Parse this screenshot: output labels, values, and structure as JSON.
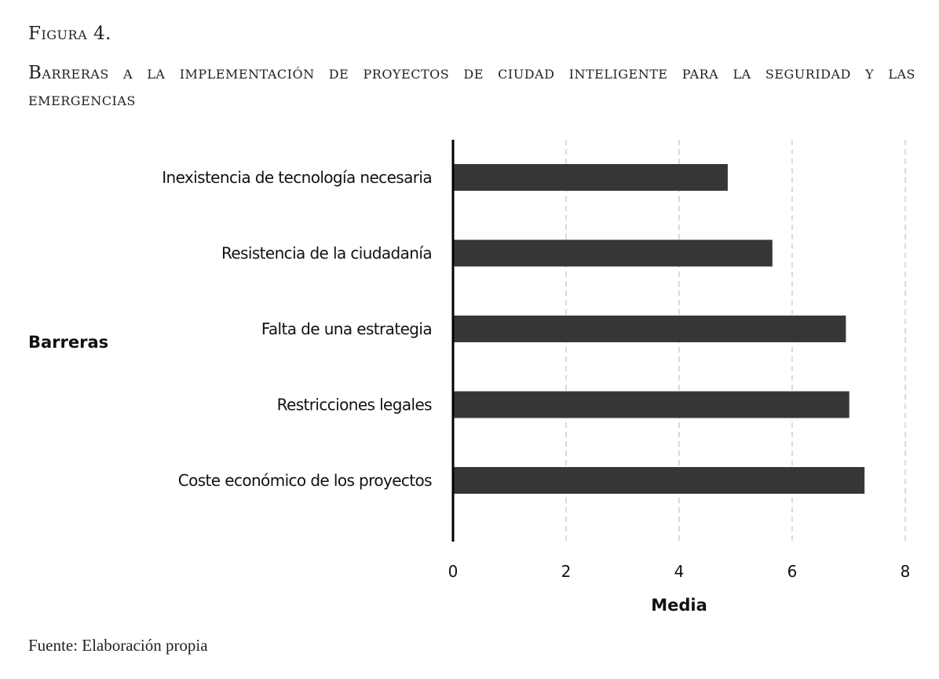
{
  "figure_label": "Figura 4.",
  "caption": "Barreras a la implementación de proyectos de ciudad inteligente para la seguridad y las emergencias",
  "source": "Fuente: Elaboración propia",
  "colors": {
    "bar": "#363636",
    "grid": "#c8c8c8"
  },
  "chart_data": {
    "type": "bar",
    "orientation": "horizontal",
    "categories": [
      "Inexistencia de tecnología necesaria",
      "Resistencia de la ciudadanía",
      "Falta de una estrategia",
      "Restricciones legales",
      "Coste económico de los proyectos"
    ],
    "values": [
      4.86,
      5.65,
      6.95,
      7.01,
      7.28
    ],
    "xlabel": "Media",
    "ylabel": "Barreras",
    "xlim": [
      0,
      8
    ],
    "xticks": [
      "0",
      "2",
      "4",
      "6",
      "8"
    ],
    "grid": "vertical dashed"
  }
}
